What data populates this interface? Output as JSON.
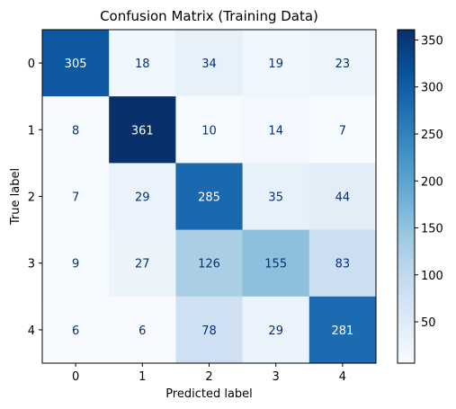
{
  "chart_data": {
    "type": "heatmap",
    "title": "Confusion Matrix (Training Data)",
    "xlabel": "Predicted label",
    "ylabel": "True label",
    "x_categories": [
      "0",
      "1",
      "2",
      "3",
      "4"
    ],
    "y_categories": [
      "0",
      "1",
      "2",
      "3",
      "4"
    ],
    "values": [
      [
        305,
        18,
        34,
        19,
        23
      ],
      [
        8,
        361,
        10,
        14,
        7
      ],
      [
        7,
        29,
        285,
        35,
        44
      ],
      [
        9,
        27,
        126,
        155,
        83
      ],
      [
        6,
        6,
        78,
        29,
        281
      ]
    ],
    "colormap": "Blues",
    "colorbar": {
      "range": [
        6,
        361
      ],
      "ticks": [
        50,
        100,
        150,
        200,
        250,
        300,
        350
      ],
      "tick_labels": [
        "50",
        "100",
        "150",
        "200",
        "250",
        "300",
        "350"
      ]
    },
    "text_color_light": "#ffffff",
    "text_color_dark": "#08306b",
    "grid": false
  }
}
